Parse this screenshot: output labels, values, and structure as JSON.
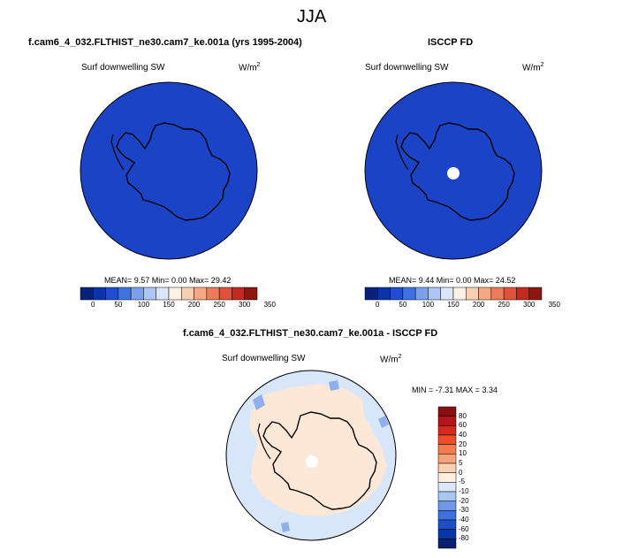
{
  "title": "JJA",
  "panels": {
    "model": {
      "header": "f.cam6_4_032.FLTHIST_ne30.cam7_ke.001a (yrs 1995-2004)",
      "variable": "Surf downwelling SW",
      "units_base": "W/m",
      "units_exp": "2",
      "stats": "MEAN=  9.57  Min=  0.00  Max=  29.42"
    },
    "obs": {
      "header": "ISCCP FD",
      "variable": "Surf downwelling SW",
      "units_base": "W/m",
      "units_exp": "2",
      "stats": "MEAN=  9.44  Min=  0.00  Max=  24.52"
    },
    "diff": {
      "header": "f.cam6_4_032.FLTHIST_ne30.cam7_ke.001a - ISCCP FD",
      "variable": "Surf downwelling SW",
      "units_base": "W/m",
      "units_exp": "2",
      "stats": "MIN = -7.31  MAX =  3.34"
    }
  },
  "colorbar_top": {
    "labels": [
      "0",
      "50",
      "100",
      "150",
      "200",
      "250",
      "300",
      "350"
    ],
    "colors": [
      "#08217a",
      "#0a35a8",
      "#1f4fd0",
      "#3f73e0",
      "#7aa0ee",
      "#aec6f5",
      "#dbe6fa",
      "#fdf0e4",
      "#f9cfb1",
      "#f4a883",
      "#ec7d58",
      "#e2523a",
      "#c42a1f",
      "#8e1410"
    ]
  },
  "colorbar_diff": {
    "labels": [
      "80",
      "60",
      "40",
      "20",
      "10",
      "5",
      "0",
      "-5",
      "-10",
      "-20",
      "-30",
      "-40",
      "-60",
      "-80"
    ],
    "colors": [
      "#8a0d0f",
      "#b4141a",
      "#d52a1f",
      "#ea4f2d",
      "#f47b4f",
      "#f8a47a",
      "#fbcfb1",
      "#fdeede",
      "#dbe8fb",
      "#a9c6f3",
      "#6f99e6",
      "#3e70dc",
      "#1f4fc8",
      "#0b35a4",
      "#08206f"
    ]
  },
  "map_colors": {
    "model_fill": "#1b43c6",
    "obs_fill": "#1b43c6",
    "diff_neg": "#d8e6fa",
    "diff_pos": "#fde7d6",
    "diff_spot": "#8fb0ec",
    "pole_hole": "#ffffff",
    "coast": "#000000"
  }
}
